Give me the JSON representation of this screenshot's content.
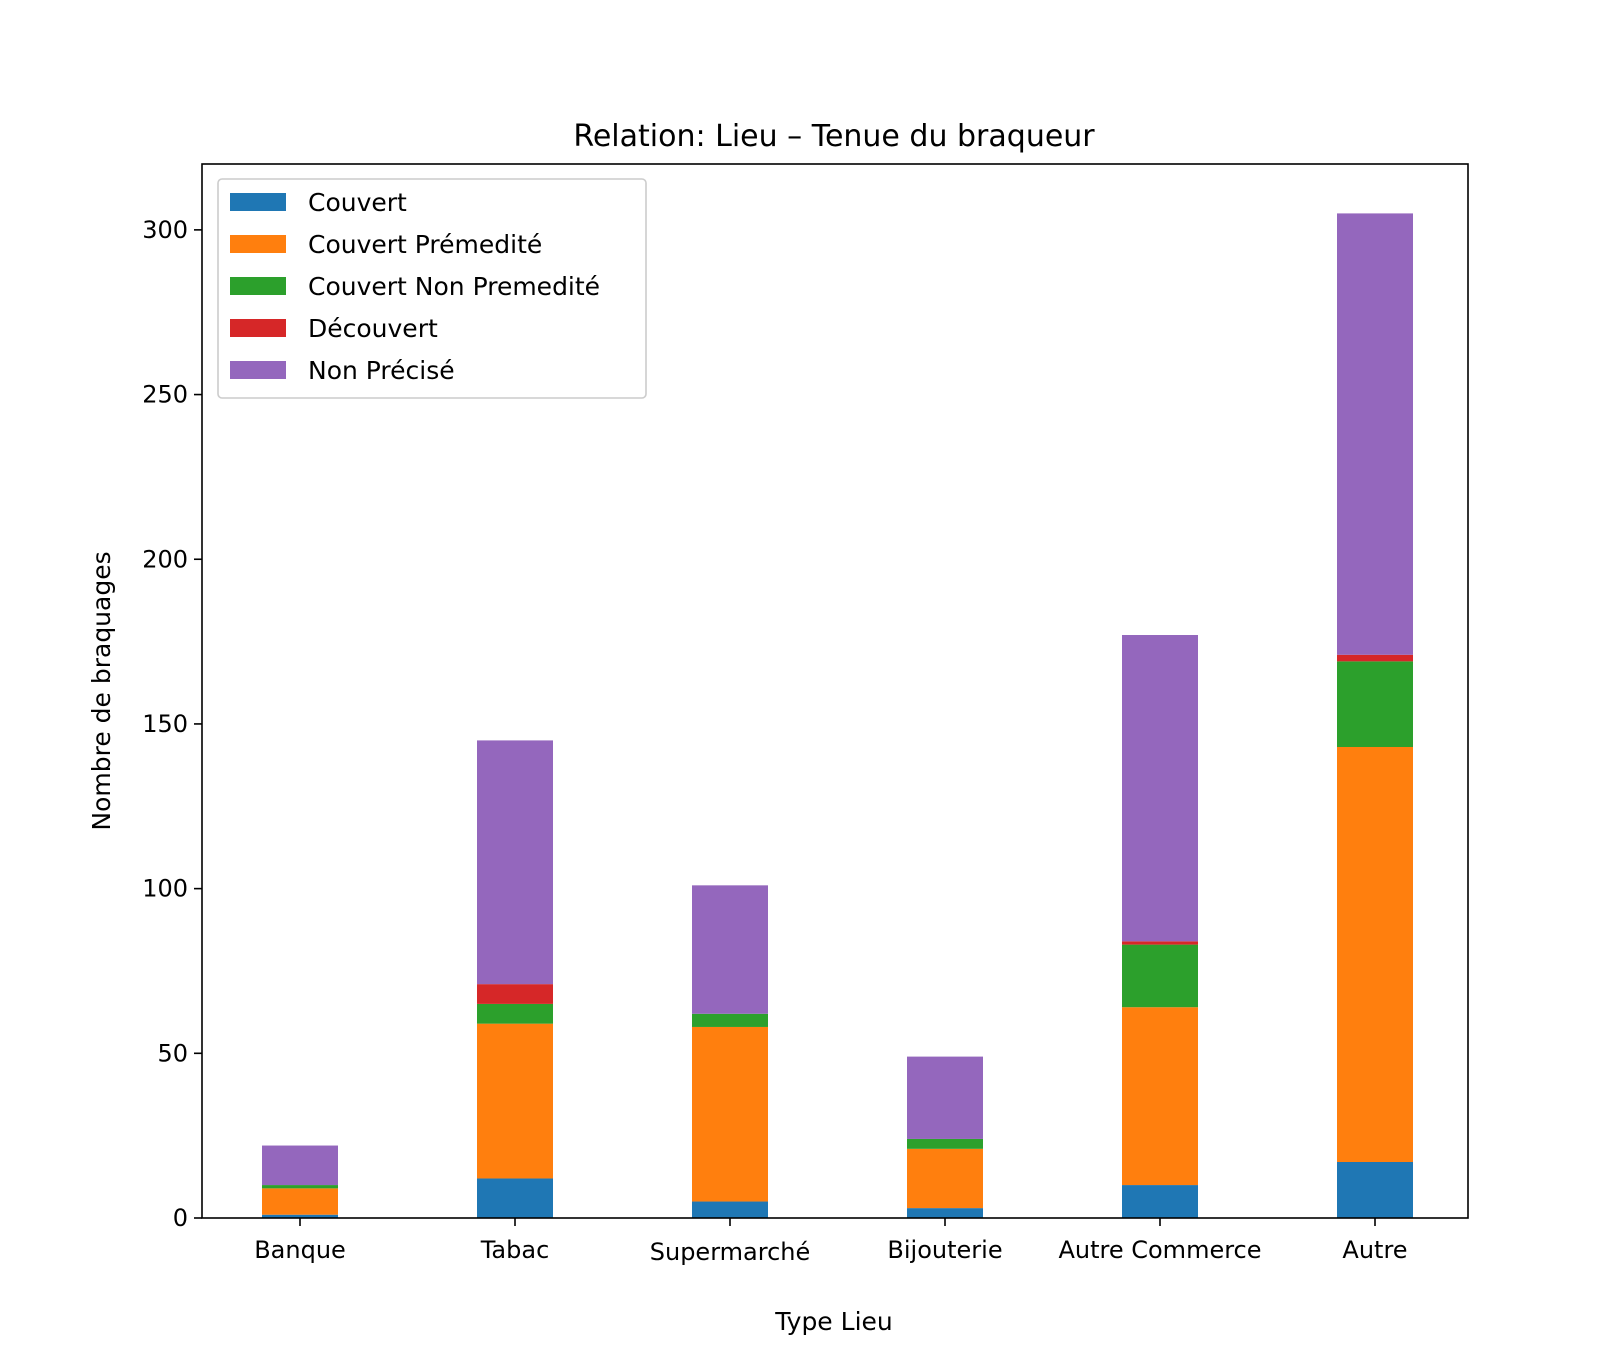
{
  "chart_data": {
    "type": "bar",
    "stacked": true,
    "title": "Relation: Lieu – Tenue du braqueur",
    "xlabel": "Type Lieu",
    "ylabel": "Nombre de braquages",
    "categories": [
      "Banque",
      "Tabac",
      "Supermarché",
      "Bijouterie",
      "Autre Commerce",
      "Autre"
    ],
    "ylim": [
      0,
      320
    ],
    "yticks": [
      0,
      50,
      100,
      150,
      200,
      250,
      300
    ],
    "legend_position": "top-left",
    "grid": false,
    "series": [
      {
        "name": "Couvert",
        "color": "#1f77b4",
        "values": [
          1,
          12,
          5,
          3,
          10,
          17
        ]
      },
      {
        "name": "Couvert Prémedité",
        "color": "#ff7f0e",
        "values": [
          8,
          47,
          53,
          18,
          54,
          126
        ]
      },
      {
        "name": "Couvert Non Premedité",
        "color": "#2ca02c",
        "values": [
          1,
          6,
          4,
          3,
          19,
          26
        ]
      },
      {
        "name": "Découvert",
        "color": "#d62728",
        "values": [
          0,
          6,
          0,
          0,
          1,
          2
        ]
      },
      {
        "name": "Non Précisé",
        "color": "#9467bd",
        "values": [
          12,
          74,
          39,
          25,
          93,
          134
        ]
      }
    ]
  }
}
